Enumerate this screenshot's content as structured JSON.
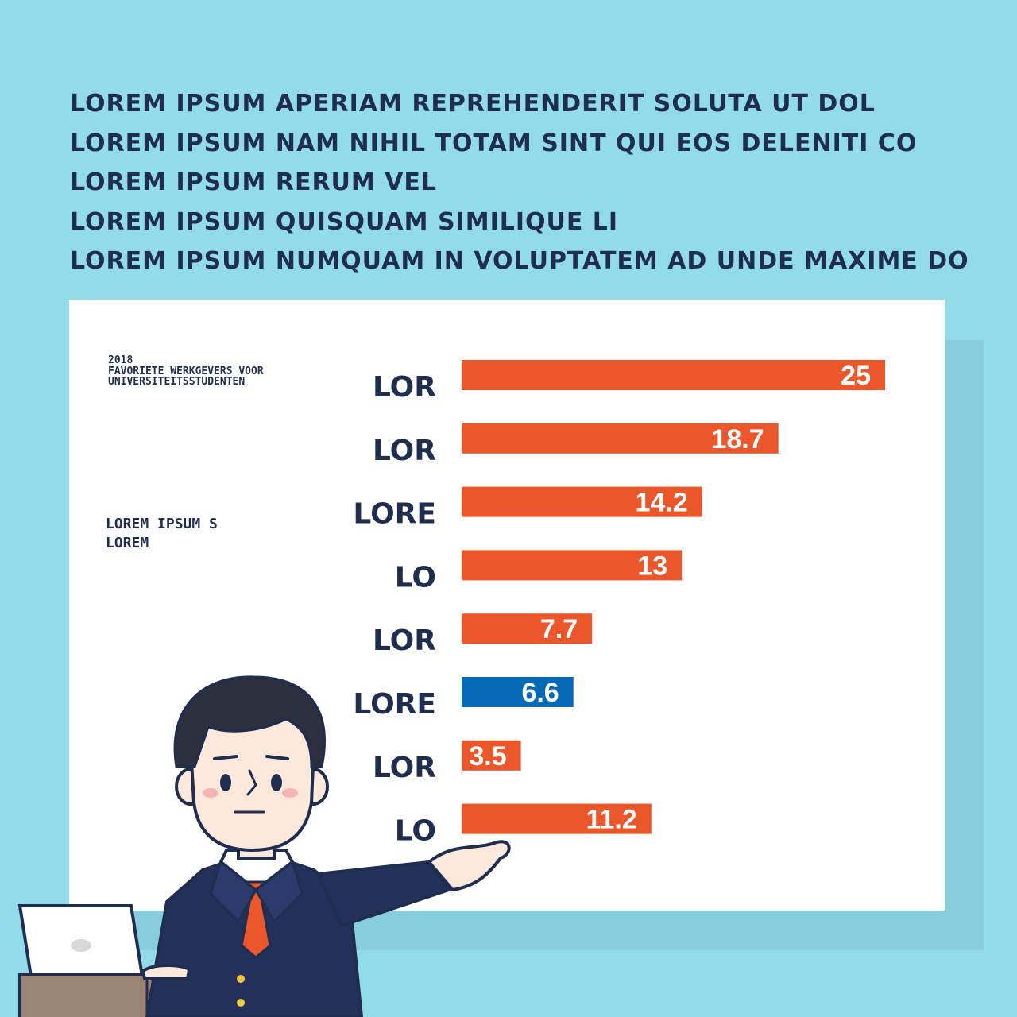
{
  "heading_lines": [
    "LOREM IPSUM APERIAM REPREHENDERIT SOLUTA UT DOL",
    "LOREM IPSUM NAM NIHIL TOTAM SINT QUI EOS DELENITI CO",
    "LOREM IPSUM RERUM VEL",
    "LOREM IPSUM QUISQUAM SIMILIQUE LI",
    "LOREM IPSUM NUMQUAM IN VOLUPTATEM AD UNDE MAXIME DO"
  ],
  "subtitle": {
    "year": "2018",
    "line1": "FAVORIETE WERKGEVERS VOOR",
    "line2": "UNIVERSITEITSSTUDENTEN"
  },
  "note": {
    "line1": "LOREM IPSUM S",
    "line2": "LOREM"
  },
  "colors": {
    "background": "#92dcea",
    "bar": "#eb562b",
    "highlight": "#0469b6",
    "text": "#1f2d4f"
  },
  "chart_data": {
    "type": "bar",
    "orientation": "horizontal",
    "categories": [
      "LOR",
      "LOR",
      "LORE",
      "LO",
      "LOR",
      "LORE",
      "LOR",
      "LO"
    ],
    "values": [
      25,
      18.7,
      14.2,
      13,
      7.7,
      6.6,
      3.5,
      11.2
    ],
    "value_labels": [
      "25",
      "18.7",
      "14.2",
      "13",
      "7.7",
      "6.6",
      "3.5",
      "11.2"
    ],
    "highlight_index": 5,
    "xlim": [
      0,
      25
    ],
    "grid": false,
    "title": "",
    "xlabel": "",
    "ylabel": ""
  }
}
